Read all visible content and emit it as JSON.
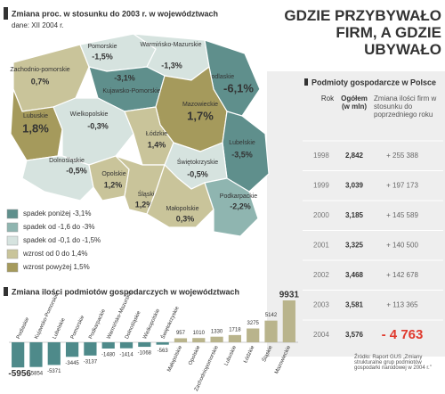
{
  "header": {
    "title": "GDZIE PRZYBYWAŁO FIRM, A GDZIE UBYWAŁO"
  },
  "map": {
    "title": "Zmiana proc. w stosunku do 2003 r. w województwach",
    "subtitle": "dane: XII 2004 r.",
    "regions": [
      {
        "name": "Zachodnio-pomorskie",
        "value": "0,7%",
        "color": "#c9c49a"
      },
      {
        "name": "Pomorskie",
        "value": "-1,5%",
        "color": "#d6e3df"
      },
      {
        "name": "Warmińsko-Mazurskie",
        "value": "-1,3%",
        "color": "#d6e3df"
      },
      {
        "name": "Podlaskie",
        "value": "-6,1%",
        "color": "#5f8f8c"
      },
      {
        "name": "Kujawsko-Pomorskie",
        "value": "-3,1%",
        "color": "#5f8f8c"
      },
      {
        "name": "Mazowieckie",
        "value": "1,7%",
        "color": "#a59a5c"
      },
      {
        "name": "Lubuskie",
        "value": "1,8%",
        "color": "#a59a5c"
      },
      {
        "name": "Wielkopolskie",
        "value": "-0,3%",
        "color": "#d6e3df"
      },
      {
        "name": "Łódzkie",
        "value": "1,4%",
        "color": "#c9c49a"
      },
      {
        "name": "Dolnośląskie",
        "value": "-0,5%",
        "color": "#d6e3df"
      },
      {
        "name": "Lubelskie",
        "value": "-3,5%",
        "color": "#5f8f8c"
      },
      {
        "name": "Świętokrzyskie",
        "value": "-0,5%",
        "color": "#d6e3df"
      },
      {
        "name": "Opolskie",
        "value": "1,2%",
        "color": "#c9c49a"
      },
      {
        "name": "Śląskie",
        "value": "1,2%",
        "color": "#c9c49a"
      },
      {
        "name": "Małopolskie",
        "value": "0,3%",
        "color": "#c9c49a"
      },
      {
        "name": "Podkarpackie",
        "value": "-2,2%",
        "color": "#8fb5b0"
      }
    ],
    "legend": [
      {
        "label": "spadek poniżej -3,1%",
        "color": "#5f8f8c"
      },
      {
        "label": "spadek od -1,6 do -3%",
        "color": "#8fb5b0"
      },
      {
        "label": "spadek od -0,1 do -1,5%",
        "color": "#d6e3df"
      },
      {
        "label": "wzrost od 0 do 1,4%",
        "color": "#c9c49a"
      },
      {
        "label": "wzrost powyżej 1,5%",
        "color": "#a59a5c"
      }
    ]
  },
  "table": {
    "title": "Podmioty gospodarcze w Polsce",
    "columns": [
      "Rok",
      "Ogółem (w mln)",
      "Zmiana ilości firm w stosunku do poprzedniego roku"
    ],
    "rows": [
      [
        "1998",
        "2,842",
        "+ 255 388"
      ],
      [
        "1999",
        "3,039",
        "+ 197 173"
      ],
      [
        "2000",
        "3,185",
        "+ 145 589"
      ],
      [
        "2001",
        "3,325",
        "+ 140 500"
      ],
      [
        "2002",
        "3,468",
        "+ 142 678"
      ],
      [
        "2003",
        "3,581",
        "+ 113 365"
      ],
      [
        "2004",
        "3,576",
        "- 4 763"
      ]
    ],
    "source": "Źródło: Raport GUS „Zmiany strukturalne grup podmiotów gospodarki narodowej w 2004 r.”"
  },
  "chart_data": {
    "type": "bar",
    "title": "Zmiana ilości podmiotów gospodarczych w województwach",
    "categories": [
      "Podlaskie",
      "Kujawsko-Pomorskie",
      "Lubelskie",
      "Pomorskie",
      "Podkarpackie",
      "Warmińsko-Mazurskie",
      "Dolnośląskie",
      "Wielkopolskie",
      "Świętokrzyskie",
      "Małopolskie",
      "Opolskie",
      "Zachodniopomorskie",
      "Lubuskie",
      "Łódzkie",
      "Śląskie",
      "Mazowieckie"
    ],
    "values": [
      -5956,
      -5854,
      -5371,
      -3445,
      -3137,
      -1480,
      -1414,
      -1068,
      -563,
      957,
      1010,
      1330,
      1718,
      3275,
      5142,
      9931
    ],
    "negative_color": "#4e8a8a",
    "positive_color": "#b9b48c"
  }
}
